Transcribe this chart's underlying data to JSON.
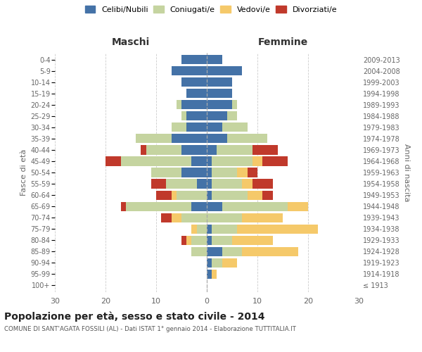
{
  "age_groups": [
    "100+",
    "95-99",
    "90-94",
    "85-89",
    "80-84",
    "75-79",
    "70-74",
    "65-69",
    "60-64",
    "55-59",
    "50-54",
    "45-49",
    "40-44",
    "35-39",
    "30-34",
    "25-29",
    "20-24",
    "15-19",
    "10-14",
    "5-9",
    "0-4"
  ],
  "birth_years": [
    "≤ 1913",
    "1914-1918",
    "1919-1923",
    "1924-1928",
    "1929-1933",
    "1934-1938",
    "1939-1943",
    "1944-1948",
    "1949-1953",
    "1954-1958",
    "1959-1963",
    "1964-1968",
    "1969-1973",
    "1974-1978",
    "1979-1983",
    "1984-1988",
    "1989-1993",
    "1994-1998",
    "1999-2003",
    "2004-2008",
    "2009-2013"
  ],
  "male": {
    "celibi": [
      0,
      0,
      0,
      0,
      0,
      0,
      0,
      3,
      0,
      2,
      5,
      3,
      5,
      7,
      4,
      4,
      5,
      4,
      5,
      7,
      5
    ],
    "coniugati": [
      0,
      0,
      0,
      3,
      3,
      2,
      5,
      13,
      6,
      6,
      6,
      14,
      7,
      7,
      3,
      1,
      1,
      0,
      0,
      0,
      0
    ],
    "vedovi": [
      0,
      0,
      0,
      0,
      1,
      1,
      2,
      0,
      1,
      0,
      0,
      0,
      0,
      0,
      0,
      0,
      0,
      0,
      0,
      0,
      0
    ],
    "divorziati": [
      0,
      0,
      0,
      0,
      1,
      0,
      2,
      1,
      3,
      3,
      0,
      3,
      1,
      0,
      0,
      0,
      0,
      0,
      0,
      0,
      0
    ]
  },
  "female": {
    "nubili": [
      0,
      1,
      1,
      3,
      1,
      1,
      0,
      3,
      1,
      1,
      1,
      1,
      2,
      4,
      3,
      4,
      5,
      5,
      5,
      7,
      3
    ],
    "coniugate": [
      0,
      0,
      2,
      4,
      4,
      5,
      7,
      13,
      7,
      6,
      5,
      8,
      7,
      8,
      5,
      2,
      1,
      0,
      0,
      0,
      0
    ],
    "vedove": [
      0,
      1,
      3,
      11,
      8,
      16,
      8,
      4,
      3,
      2,
      2,
      2,
      0,
      0,
      0,
      0,
      0,
      0,
      0,
      0,
      0
    ],
    "divorziate": [
      0,
      0,
      0,
      0,
      0,
      0,
      0,
      0,
      2,
      4,
      2,
      5,
      5,
      0,
      0,
      0,
      0,
      0,
      0,
      0,
      0
    ]
  },
  "colors": {
    "celibi": "#4472a7",
    "coniugati": "#c5d4a0",
    "vedovi": "#f5c96a",
    "divorziati": "#c0392b"
  },
  "xlim": 30,
  "title": "Popolazione per età, sesso e stato civile - 2014",
  "subtitle": "COMUNE DI SANT'AGATA FOSSILI (AL) - Dati ISTAT 1° gennaio 2014 - Elaborazione TUTTITALIA.IT",
  "ylabel_left": "Fasce di età",
  "ylabel_right": "Anni di nascita",
  "header_left": "Maschi",
  "header_right": "Femmine",
  "bg_color": "#ffffff",
  "grid_color": "#cccccc"
}
